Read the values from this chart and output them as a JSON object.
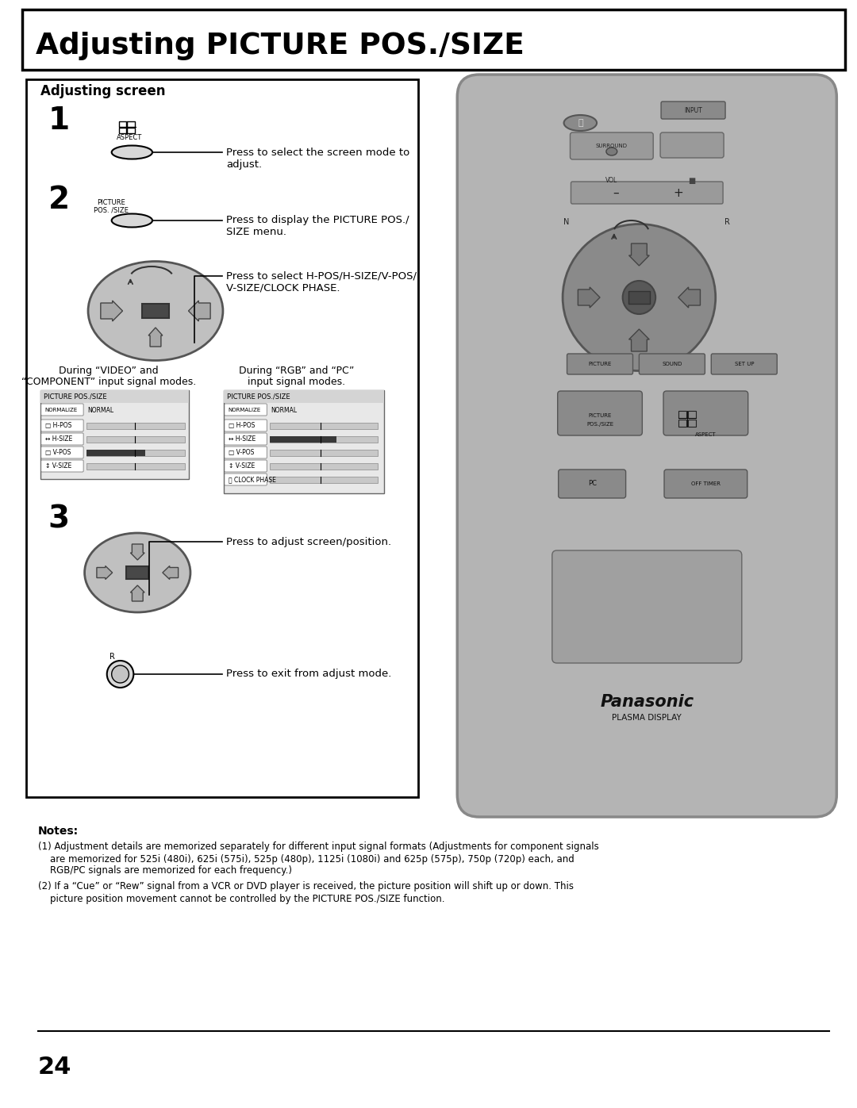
{
  "title": "Adjusting PICTURE POS./SIZE",
  "title_fontsize": 28,
  "background_color": "#ffffff",
  "border_color": "#000000",
  "section_title": "Adjusting screen",
  "step1_label": "1",
  "step2_label": "2",
  "step3_label": "3",
  "step1_text1": "Press to select the screen mode to",
  "step1_text2": "adjust.",
  "step2_text1": "Press to display the PICTURE POS./",
  "step2_text2": "SIZE menu.",
  "step2_text3": "Press to select H-POS/H-SIZE/V-POS/",
  "step2_text4": "V-SIZE/CLOCK PHASE.",
  "video_label": "During “VIDEO” and",
  "video_label2": "“COMPONENT” input signal modes.",
  "rgb_label": "During “RGB” and “PC”",
  "rgb_label2": "input signal modes.",
  "step3_text": "Press to adjust screen/position.",
  "exit_text": "Press to exit from adjust mode.",
  "r_label": "R",
  "notes_title": "Notes:",
  "note1a": "(1) Adjustment details are memorized separately for different input signal formats (Adjustments for component signals",
  "note1b": "    are memorized for 525i (480i), 625i (575i), 525p (480p), 1125i (1080i) and 625p (575p), 750p (720p) each, and",
  "note1c": "    RGB/PC signals are memorized for each frequency.)",
  "note2a": "(2) If a “Cue” or “Rew” signal from a VCR or DVD player is received, the picture position will shift up or down. This",
  "note2b": "    picture position movement cannot be controlled by the PICTURE POS./SIZE function.",
  "page_number": "24",
  "aspect_label": "ASPECT",
  "picture_pos_label": "PICTURE\nPOS. /SIZE",
  "menu_title": "PICTURE POS./SIZE",
  "panasonic_text": "Panasonic",
  "plasma_text": "PLASMA DISPLAY"
}
